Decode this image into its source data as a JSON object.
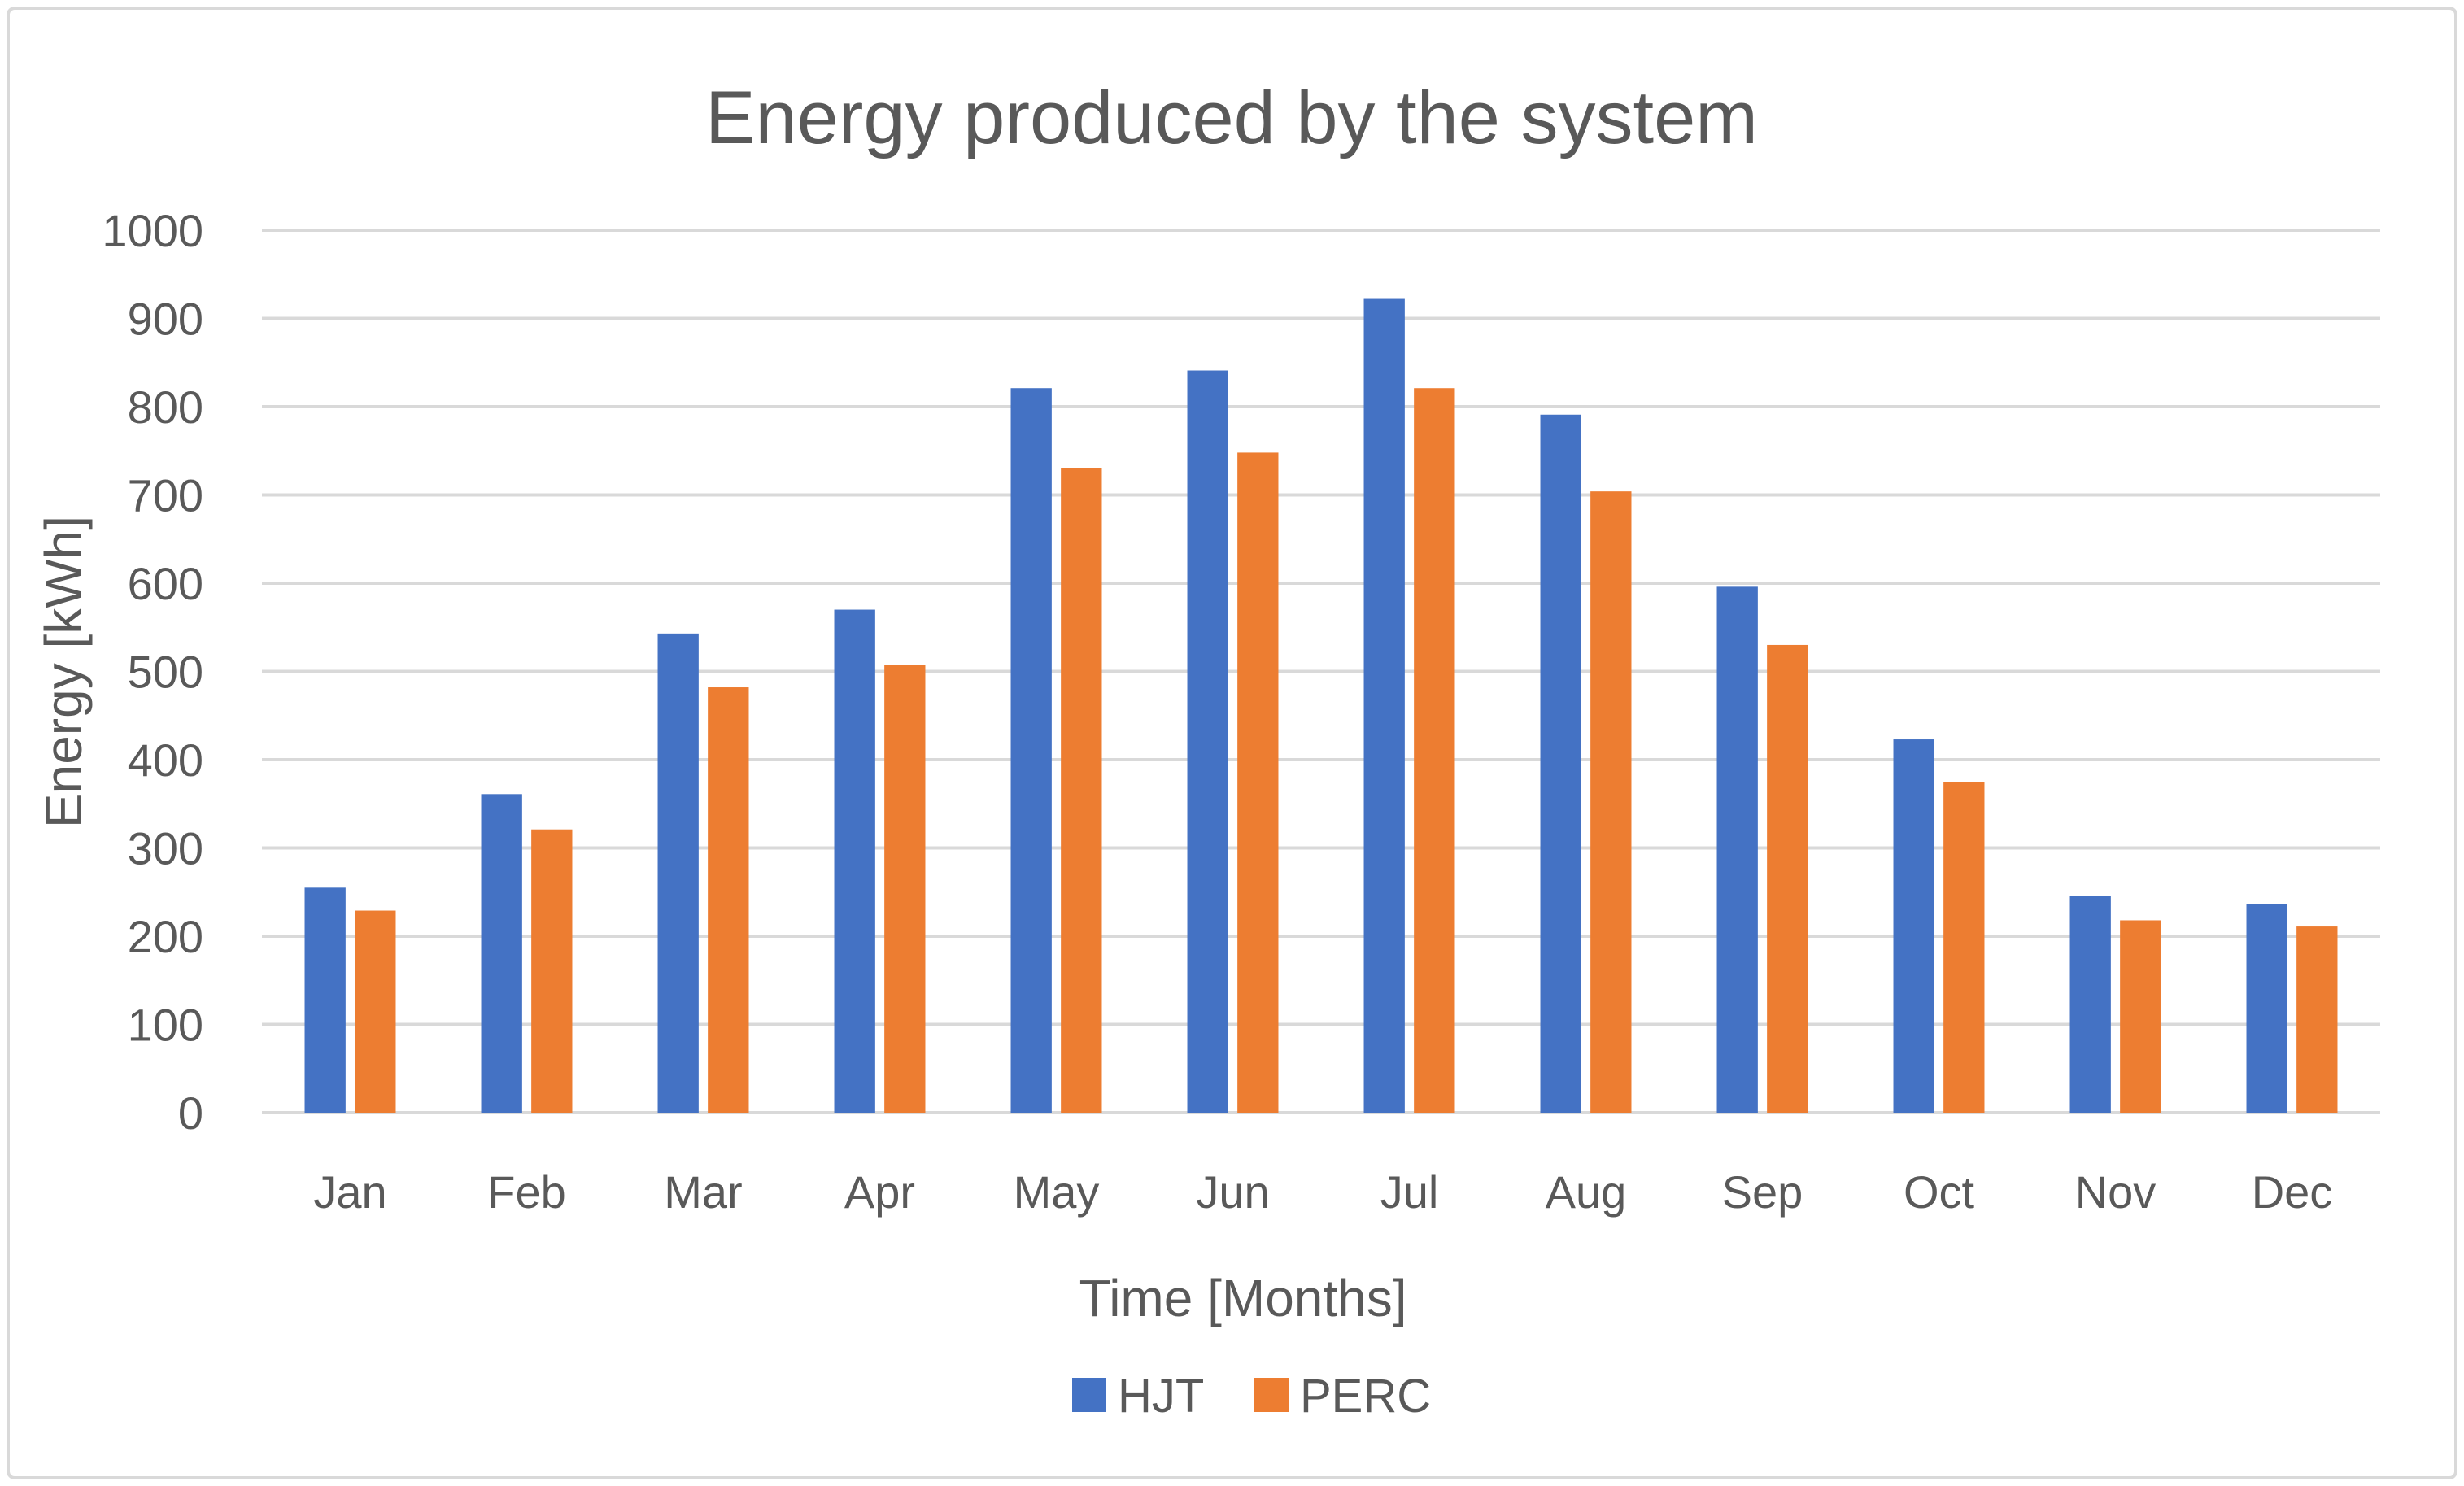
{
  "chart_data": {
    "type": "bar",
    "title": "Energy produced by the system",
    "xlabel": "Time [Months]",
    "ylabel": "Energy [kWh]",
    "ylim": [
      0,
      1000
    ],
    "yticks": [
      0,
      100,
      200,
      300,
      400,
      500,
      600,
      700,
      800,
      900,
      1000
    ],
    "grid": true,
    "legend_position": "bottom",
    "categories": [
      "Jan",
      "Feb",
      "Mar",
      "Apr",
      "May",
      "Jun",
      "Jul",
      "Aug",
      "Sep",
      "Oct",
      "Nov",
      "Dec"
    ],
    "series": [
      {
        "name": "HJT",
        "color": "#4472C4",
        "values": [
          255,
          361,
          543,
          570,
          821,
          841,
          923,
          791,
          596,
          423,
          246,
          236
        ]
      },
      {
        "name": "PERC",
        "color": "#ED7D31",
        "values": [
          229,
          321,
          482,
          507,
          730,
          748,
          821,
          704,
          530,
          375,
          218,
          211
        ]
      }
    ]
  }
}
